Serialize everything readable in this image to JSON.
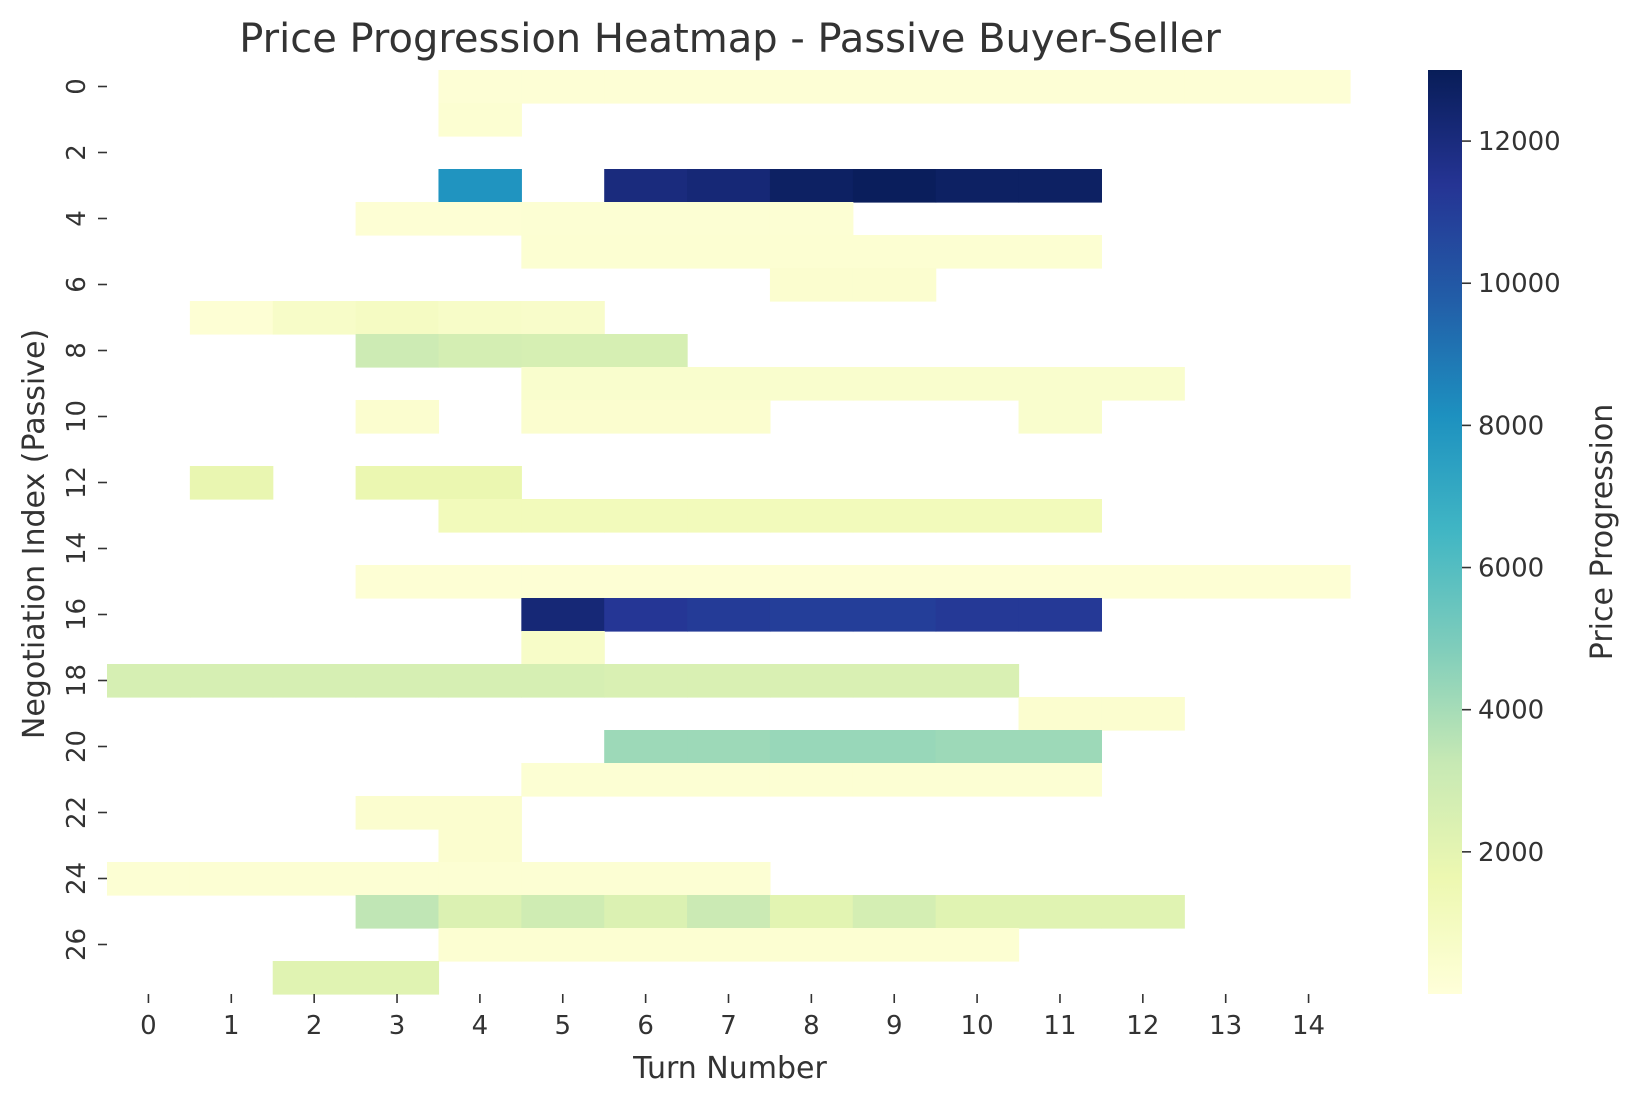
{
  "chart_data": {
    "type": "heatmap",
    "title": "Price Progression Heatmap - Passive Buyer-Seller",
    "xlabel": "Turn Number",
    "ylabel": "Negotiation Index (Passive)",
    "colorbar_label": "Price Progression",
    "colormap": "YlGnBu",
    "vmin": 0,
    "vmax": 13000,
    "x_ticks": [
      0,
      1,
      2,
      3,
      4,
      5,
      6,
      7,
      8,
      9,
      10,
      11,
      12,
      13,
      14
    ],
    "y_ticks": [
      0,
      2,
      4,
      6,
      8,
      10,
      12,
      14,
      16,
      18,
      20,
      22,
      24,
      26
    ],
    "colorbar_ticks": [
      2000,
      4000,
      6000,
      8000,
      10000,
      12000
    ],
    "n_cols": 15,
    "n_rows": 28,
    "rows": [
      {
        "index": 0,
        "cells": [
          [
            4,
            180
          ],
          [
            5,
            180
          ],
          [
            6,
            180
          ],
          [
            7,
            180
          ],
          [
            8,
            180
          ],
          [
            9,
            180
          ],
          [
            10,
            180
          ],
          [
            11,
            180
          ],
          [
            12,
            180
          ],
          [
            13,
            180
          ],
          [
            14,
            180
          ]
        ]
      },
      {
        "index": 1,
        "cells": [
          [
            4,
            300
          ]
        ]
      },
      {
        "index": 2,
        "cells": []
      },
      {
        "index": 3,
        "cells": [
          [
            4,
            8000
          ],
          [
            6,
            12000
          ],
          [
            7,
            12200
          ],
          [
            8,
            12700
          ],
          [
            9,
            12900
          ],
          [
            10,
            12700
          ],
          [
            11,
            12700
          ]
        ]
      },
      {
        "index": 4,
        "cells": [
          [
            3,
            200
          ],
          [
            4,
            200
          ],
          [
            5,
            250
          ],
          [
            6,
            250
          ],
          [
            7,
            250
          ],
          [
            8,
            250
          ]
        ]
      },
      {
        "index": 5,
        "cells": [
          [
            5,
            300
          ],
          [
            6,
            300
          ],
          [
            7,
            300
          ],
          [
            8,
            300
          ],
          [
            9,
            300
          ],
          [
            10,
            300
          ],
          [
            11,
            300
          ]
        ]
      },
      {
        "index": 6,
        "cells": [
          [
            8,
            400
          ],
          [
            9,
            400
          ]
        ]
      },
      {
        "index": 7,
        "cells": [
          [
            1,
            200
          ],
          [
            2,
            700
          ],
          [
            3,
            900
          ],
          [
            4,
            700
          ],
          [
            5,
            600
          ]
        ]
      },
      {
        "index": 8,
        "cells": [
          [
            3,
            3000
          ],
          [
            4,
            2700
          ],
          [
            5,
            2600
          ],
          [
            6,
            2600
          ]
        ]
      },
      {
        "index": 9,
        "cells": [
          [
            5,
            500
          ],
          [
            6,
            500
          ],
          [
            7,
            500
          ],
          [
            8,
            500
          ],
          [
            9,
            500
          ],
          [
            10,
            500
          ],
          [
            11,
            500
          ],
          [
            12,
            500
          ]
        ]
      },
      {
        "index": 10,
        "cells": [
          [
            3,
            400
          ],
          [
            5,
            400
          ],
          [
            6,
            400
          ],
          [
            7,
            400
          ],
          [
            11,
            500
          ]
        ]
      },
      {
        "index": 11,
        "cells": []
      },
      {
        "index": 12,
        "cells": [
          [
            1,
            1800
          ],
          [
            3,
            1700
          ],
          [
            4,
            1700
          ]
        ]
      },
      {
        "index": 13,
        "cells": [
          [
            4,
            1200
          ],
          [
            5,
            1200
          ],
          [
            6,
            1200
          ],
          [
            7,
            1200
          ],
          [
            8,
            1200
          ],
          [
            9,
            1200
          ],
          [
            10,
            1200
          ],
          [
            11,
            1200
          ]
        ]
      },
      {
        "index": 14,
        "cells": []
      },
      {
        "index": 15,
        "cells": [
          [
            3,
            200
          ],
          [
            4,
            200
          ],
          [
            5,
            200
          ],
          [
            6,
            200
          ],
          [
            7,
            200
          ],
          [
            8,
            200
          ],
          [
            9,
            200
          ],
          [
            10,
            200
          ],
          [
            11,
            200
          ],
          [
            12,
            200
          ],
          [
            13,
            200
          ],
          [
            14,
            200
          ]
        ]
      },
      {
        "index": 16,
        "cells": [
          [
            5,
            12200
          ],
          [
            6,
            11300
          ],
          [
            7,
            11100
          ],
          [
            8,
            11000
          ],
          [
            9,
            11000
          ],
          [
            10,
            11200
          ],
          [
            11,
            11200
          ]
        ]
      },
      {
        "index": 17,
        "cells": [
          [
            5,
            700
          ]
        ]
      },
      {
        "index": 18,
        "cells": [
          [
            0,
            2600
          ],
          [
            1,
            2600
          ],
          [
            2,
            2600
          ],
          [
            3,
            2600
          ],
          [
            4,
            2600
          ],
          [
            5,
            2600
          ],
          [
            6,
            2500
          ],
          [
            7,
            2500
          ],
          [
            8,
            2500
          ],
          [
            9,
            2500
          ],
          [
            10,
            2500
          ]
        ]
      },
      {
        "index": 19,
        "cells": [
          [
            11,
            400
          ],
          [
            12,
            400
          ]
        ]
      },
      {
        "index": 20,
        "cells": [
          [
            6,
            4200
          ],
          [
            7,
            4200
          ],
          [
            8,
            4300
          ],
          [
            9,
            4300
          ],
          [
            10,
            4200
          ],
          [
            11,
            4200
          ]
        ]
      },
      {
        "index": 21,
        "cells": [
          [
            5,
            250
          ],
          [
            6,
            250
          ],
          [
            7,
            250
          ],
          [
            8,
            250
          ],
          [
            9,
            250
          ],
          [
            10,
            250
          ],
          [
            11,
            250
          ]
        ]
      },
      {
        "index": 22,
        "cells": [
          [
            3,
            400
          ],
          [
            4,
            400
          ]
        ]
      },
      {
        "index": 23,
        "cells": [
          [
            4,
            400
          ]
        ]
      },
      {
        "index": 24,
        "cells": [
          [
            0,
            250
          ],
          [
            1,
            250
          ],
          [
            2,
            250
          ],
          [
            3,
            250
          ],
          [
            4,
            250
          ],
          [
            5,
            250
          ],
          [
            6,
            250
          ],
          [
            7,
            250
          ]
        ]
      },
      {
        "index": 25,
        "cells": [
          [
            3,
            3400
          ],
          [
            4,
            2400
          ],
          [
            5,
            2900
          ],
          [
            6,
            2400
          ],
          [
            7,
            3100
          ],
          [
            8,
            2100
          ],
          [
            9,
            2700
          ],
          [
            10,
            2200
          ],
          [
            11,
            2200
          ],
          [
            12,
            2200
          ]
        ]
      },
      {
        "index": 26,
        "cells": [
          [
            4,
            300
          ],
          [
            5,
            300
          ],
          [
            6,
            300
          ],
          [
            7,
            300
          ],
          [
            8,
            300
          ],
          [
            9,
            300
          ],
          [
            10,
            300
          ]
        ]
      },
      {
        "index": 27,
        "cells": [
          [
            2,
            2200
          ],
          [
            3,
            2200
          ]
        ]
      }
    ]
  }
}
